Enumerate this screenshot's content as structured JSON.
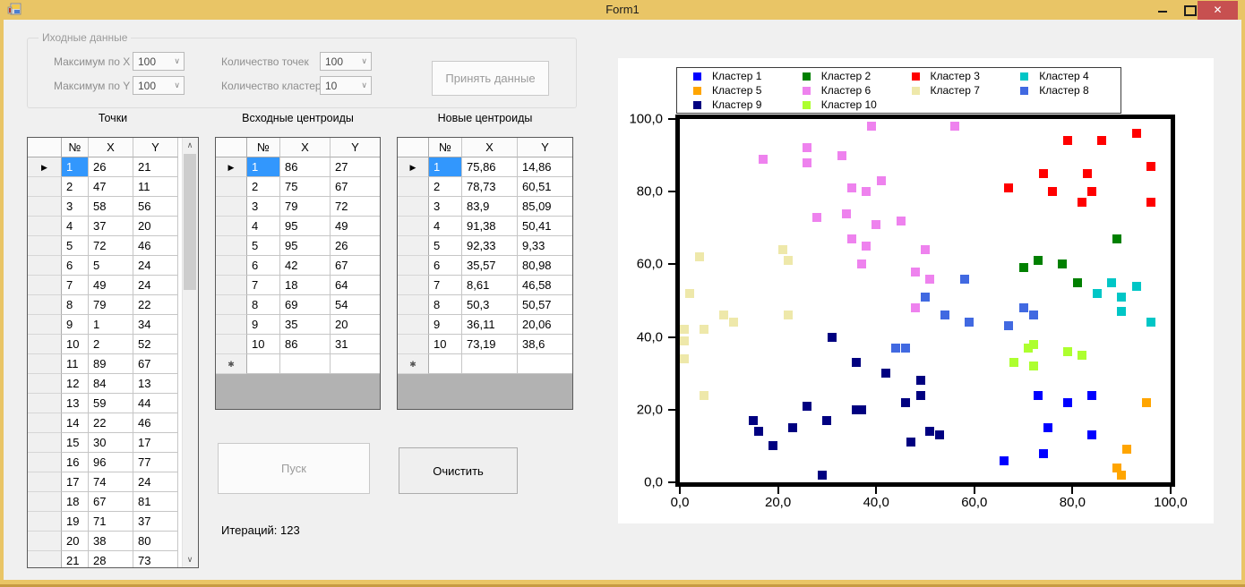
{
  "window": {
    "title": "Form1",
    "close_glyph": "✕"
  },
  "panel": {
    "group_title": "Иходные данные",
    "fields": [
      {
        "label": "Максимум по X",
        "value": "100"
      },
      {
        "label": "Максимум по Y",
        "value": "100"
      },
      {
        "label": "Количество точек",
        "value": "100"
      },
      {
        "label": "Количество кластеров",
        "value": "10"
      }
    ],
    "accept_button": "Принять данные"
  },
  "sections": {
    "points": "Точки",
    "initial": "Всходные центроиды",
    "new": "Новые центроиды"
  },
  "tables": {
    "points": {
      "headers": [
        "№",
        "X",
        "Y"
      ],
      "rows": [
        [
          1,
          26,
          21
        ],
        [
          2,
          47,
          11
        ],
        [
          3,
          58,
          56
        ],
        [
          4,
          37,
          20
        ],
        [
          5,
          72,
          46
        ],
        [
          6,
          5,
          24
        ],
        [
          7,
          49,
          24
        ],
        [
          8,
          79,
          22
        ],
        [
          9,
          1,
          34
        ],
        [
          10,
          2,
          52
        ],
        [
          11,
          89,
          67
        ],
        [
          12,
          84,
          13
        ],
        [
          13,
          59,
          44
        ],
        [
          14,
          22,
          46
        ],
        [
          15,
          30,
          17
        ],
        [
          16,
          96,
          77
        ],
        [
          17,
          74,
          24
        ],
        [
          18,
          67,
          81
        ],
        [
          19,
          71,
          37
        ],
        [
          20,
          38,
          80
        ],
        [
          21,
          28,
          73
        ]
      ],
      "new_row": false
    },
    "initial": {
      "headers": [
        "№",
        "X",
        "Y"
      ],
      "rows": [
        [
          1,
          86,
          27
        ],
        [
          2,
          75,
          67
        ],
        [
          3,
          79,
          72
        ],
        [
          4,
          95,
          49
        ],
        [
          5,
          95,
          26
        ],
        [
          6,
          42,
          67
        ],
        [
          7,
          18,
          64
        ],
        [
          8,
          69,
          54
        ],
        [
          9,
          35,
          20
        ],
        [
          10,
          86,
          31
        ]
      ],
      "new_row": true
    },
    "new": {
      "headers": [
        "№",
        "X",
        "Y"
      ],
      "rows": [
        [
          1,
          "75,86",
          "14,86"
        ],
        [
          2,
          "78,73",
          "60,51"
        ],
        [
          3,
          "83,9",
          "85,09"
        ],
        [
          4,
          "91,38",
          "50,41"
        ],
        [
          5,
          "92,33",
          "9,33"
        ],
        [
          6,
          "35,57",
          "80,98"
        ],
        [
          7,
          "8,61",
          "46,58"
        ],
        [
          8,
          "50,3",
          "50,57"
        ],
        [
          9,
          "36,11",
          "20,06"
        ],
        [
          10,
          "73,19",
          "38,6"
        ]
      ],
      "new_row": true
    }
  },
  "buttons": {
    "start": "Пуск",
    "clear": "Очистить",
    "accept": "Принять данные"
  },
  "iterations_label": "Итераций: 123",
  "icons": {
    "minimize": "horizontal-bar",
    "maximize": "square-outline",
    "close": "✕",
    "scroll_up": "∧",
    "scroll_down": "∨",
    "row_arrow": "▶",
    "new_row_marker": "✱"
  },
  "scrollbar": {
    "up_glyph": "∧",
    "down_glyph": "∨"
  },
  "chart_data": {
    "type": "scatter",
    "title": "",
    "xlabel": "",
    "ylabel": "",
    "xlim": [
      0,
      100
    ],
    "ylim": [
      0,
      100
    ],
    "grid": false,
    "legend_position": "top",
    "x_ticks": [
      "0,0",
      "20,0",
      "40,0",
      "60,0",
      "80,0",
      "100,0"
    ],
    "y_ticks": [
      "100,0",
      "80,0",
      "60,0",
      "40,0",
      "20,0",
      "0,0"
    ],
    "series": [
      {
        "name": "Кластер 1",
        "color": "#0000FF",
        "points": [
          [
            73,
            24
          ],
          [
            79,
            22
          ],
          [
            84,
            24
          ],
          [
            75,
            15
          ],
          [
            84,
            13
          ],
          [
            74,
            8
          ],
          [
            66,
            6
          ]
        ]
      },
      {
        "name": "Кластер 2",
        "color": "#008000",
        "points": [
          [
            89,
            67
          ],
          [
            73,
            61
          ],
          [
            78,
            60
          ],
          [
            70,
            59
          ],
          [
            81,
            55
          ]
        ]
      },
      {
        "name": "Кластер 3",
        "color": "#FF0000",
        "points": [
          [
            79,
            94
          ],
          [
            86,
            94
          ],
          [
            93,
            96
          ],
          [
            96,
            87
          ],
          [
            74,
            85
          ],
          [
            83,
            85
          ],
          [
            67,
            81
          ],
          [
            76,
            80
          ],
          [
            84,
            80
          ],
          [
            82,
            77
          ],
          [
            96,
            77
          ]
        ]
      },
      {
        "name": "Кластер 4",
        "color": "#00C6C6",
        "points": [
          [
            88,
            55
          ],
          [
            93,
            54
          ],
          [
            85,
            52
          ],
          [
            90,
            51
          ],
          [
            90,
            47
          ],
          [
            96,
            44
          ]
        ]
      },
      {
        "name": "Кластер 5",
        "color": "#FFA500",
        "points": [
          [
            95,
            22
          ],
          [
            91,
            9
          ],
          [
            89,
            4
          ],
          [
            90,
            2
          ]
        ]
      },
      {
        "name": "Кластер 6",
        "color": "#EE82EE",
        "points": [
          [
            39,
            98
          ],
          [
            56,
            98
          ],
          [
            26,
            92
          ],
          [
            33,
            90
          ],
          [
            17,
            89
          ],
          [
            26,
            88
          ],
          [
            41,
            83
          ],
          [
            35,
            81
          ],
          [
            38,
            80
          ],
          [
            34,
            74
          ],
          [
            28,
            73
          ],
          [
            40,
            71
          ],
          [
            45,
            72
          ],
          [
            35,
            67
          ],
          [
            38,
            65
          ],
          [
            50,
            64
          ],
          [
            37,
            60
          ],
          [
            48,
            58
          ],
          [
            51,
            56
          ],
          [
            48,
            48
          ]
        ]
      },
      {
        "name": "Кластер 7",
        "color": "#EEE8AA",
        "points": [
          [
            4,
            62
          ],
          [
            21,
            64
          ],
          [
            22,
            61
          ],
          [
            2,
            52
          ],
          [
            9,
            46
          ],
          [
            22,
            46
          ],
          [
            11,
            44
          ],
          [
            1,
            42
          ],
          [
            5,
            42
          ],
          [
            1,
            39
          ],
          [
            1,
            34
          ],
          [
            5,
            24
          ]
        ]
      },
      {
        "name": "Кластер 8",
        "color": "#4169E1",
        "points": [
          [
            58,
            56
          ],
          [
            50,
            51
          ],
          [
            44,
            37
          ],
          [
            46,
            37
          ],
          [
            70,
            48
          ],
          [
            72,
            46
          ],
          [
            54,
            46
          ],
          [
            59,
            44
          ],
          [
            67,
            43
          ]
        ]
      },
      {
        "name": "Кластер 9",
        "color": "#000080",
        "points": [
          [
            26,
            21
          ],
          [
            47,
            11
          ],
          [
            37,
            20
          ],
          [
            49,
            24
          ],
          [
            31,
            40
          ],
          [
            36,
            33
          ],
          [
            42,
            30
          ],
          [
            36,
            20
          ],
          [
            15,
            17
          ],
          [
            16,
            14
          ],
          [
            30,
            17
          ],
          [
            23,
            15
          ],
          [
            19,
            10
          ],
          [
            29,
            2
          ],
          [
            49,
            28
          ],
          [
            46,
            22
          ],
          [
            51,
            14
          ],
          [
            53,
            13
          ]
        ]
      },
      {
        "name": "Кластер 10",
        "color": "#ADFF2F",
        "points": [
          [
            72,
            38
          ],
          [
            71,
            37
          ],
          [
            68,
            33
          ],
          [
            72,
            32
          ],
          [
            79,
            36
          ],
          [
            82,
            35
          ]
        ]
      }
    ]
  }
}
